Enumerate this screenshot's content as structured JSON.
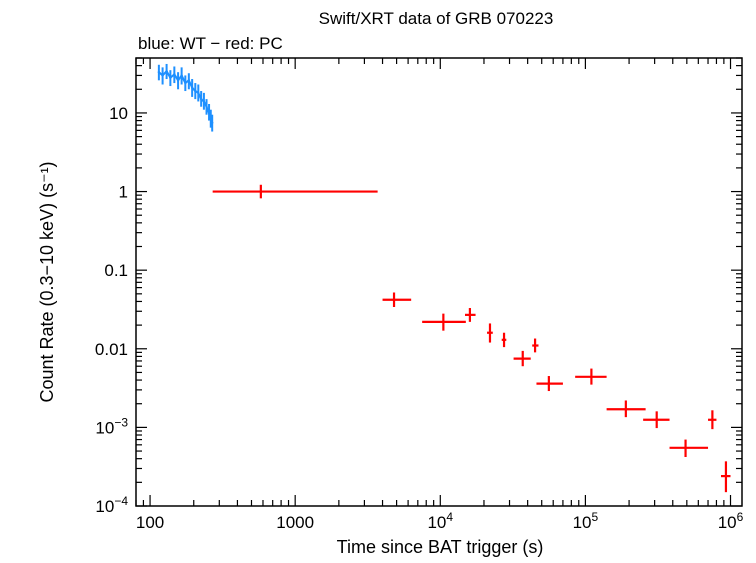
{
  "chart_data": {
    "type": "scatter",
    "title": "Swift/XRT data of GRB 070223",
    "subtitle": "blue: WT − red: PC",
    "xlabel": "Time since BAT trigger (s)",
    "ylabel": "Count Rate (0.3−10 keV) (s⁻¹)",
    "xscale": "log",
    "yscale": "log",
    "xlim": [
      80,
      1200000
    ],
    "ylim": [
      0.0001,
      50
    ],
    "grid": false,
    "x_ticks": [
      {
        "value": 100,
        "base": "100",
        "exp": ""
      },
      {
        "value": 1000,
        "base": "1000",
        "exp": ""
      },
      {
        "value": 10000,
        "base": "10",
        "exp": "4"
      },
      {
        "value": 100000,
        "base": "10",
        "exp": "5"
      },
      {
        "value": 1000000,
        "base": "10",
        "exp": "6"
      }
    ],
    "y_ticks": [
      {
        "value": 10,
        "base": "10",
        "exp": ""
      },
      {
        "value": 1,
        "base": "1",
        "exp": ""
      },
      {
        "value": 0.1,
        "base": "0.1",
        "exp": ""
      },
      {
        "value": 0.01,
        "base": "0.01",
        "exp": ""
      },
      {
        "value": 0.001,
        "base": "10",
        "exp": "−3"
      },
      {
        "value": 0.0001,
        "base": "10",
        "exp": "−4"
      }
    ],
    "series": [
      {
        "color": "#1e90ff",
        "mode": "WT",
        "x": [
          115,
          122,
          130,
          138,
          147,
          156,
          165,
          175,
          185,
          195,
          205,
          215,
          225,
          235,
          245,
          255,
          262,
          268
        ],
        "y": [
          33,
          30,
          34,
          28,
          31,
          26,
          30,
          24,
          26,
          21,
          19,
          18,
          15,
          14,
          12,
          10,
          8.5,
          7.5
        ],
        "y_lo": [
          26,
          23,
          27,
          22,
          24,
          20,
          23,
          19,
          20,
          16,
          15,
          14,
          12,
          11,
          9.5,
          8,
          6.5,
          5.8
        ],
        "y_hi": [
          41,
          38,
          42,
          35,
          39,
          33,
          38,
          30,
          32,
          27,
          24,
          23,
          19,
          18,
          15,
          13,
          11,
          9.5
        ]
      },
      {
        "color": "#ff0000",
        "mode": "PC",
        "x": [
          580,
          4800,
          10500,
          16000,
          22000,
          27500,
          37000,
          45000,
          56000,
          110000,
          190000,
          310000,
          490000,
          750000,
          930000
        ],
        "x_lo": [
          270,
          4000,
          7500,
          14800,
          21000,
          26500,
          32000,
          43000,
          46000,
          85000,
          140000,
          250000,
          380000,
          700000,
          860000
        ],
        "x_hi": [
          3700,
          6300,
          15000,
          17500,
          23000,
          28500,
          42000,
          47500,
          70000,
          140000,
          260000,
          380000,
          700000,
          800000,
          1000000
        ],
        "y": [
          1.0,
          0.042,
          0.022,
          0.027,
          0.016,
          0.013,
          0.0075,
          0.011,
          0.0036,
          0.0044,
          0.0017,
          0.00125,
          0.00055,
          0.00125,
          0.00024
        ],
        "y_lo": [
          0.82,
          0.034,
          0.017,
          0.022,
          0.012,
          0.0105,
          0.006,
          0.009,
          0.0029,
          0.0035,
          0.00135,
          0.00098,
          0.00042,
          0.00095,
          0.00015
        ],
        "y_hi": [
          1.22,
          0.052,
          0.028,
          0.033,
          0.021,
          0.016,
          0.0094,
          0.0135,
          0.0045,
          0.0056,
          0.0022,
          0.0016,
          0.0007,
          0.00165,
          0.00037
        ]
      }
    ]
  }
}
